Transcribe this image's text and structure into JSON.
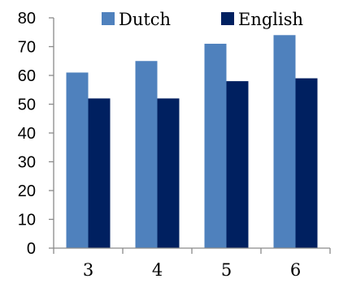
{
  "chart_data": {
    "type": "bar",
    "categories": [
      "3",
      "4",
      "5",
      "6"
    ],
    "series": [
      {
        "name": "Dutch",
        "values": [
          61,
          65,
          71,
          74
        ],
        "color": "#4f81bd"
      },
      {
        "name": "English",
        "values": [
          52,
          52,
          58,
          59
        ],
        "color": "#002060"
      }
    ],
    "title": "",
    "xlabel": "",
    "ylabel": "",
    "ylim": [
      0,
      80
    ],
    "yticks": [
      "0",
      "10",
      "20",
      "30",
      "40",
      "50",
      "60",
      "70",
      "80"
    ],
    "grid": false,
    "legend_position": "top"
  }
}
